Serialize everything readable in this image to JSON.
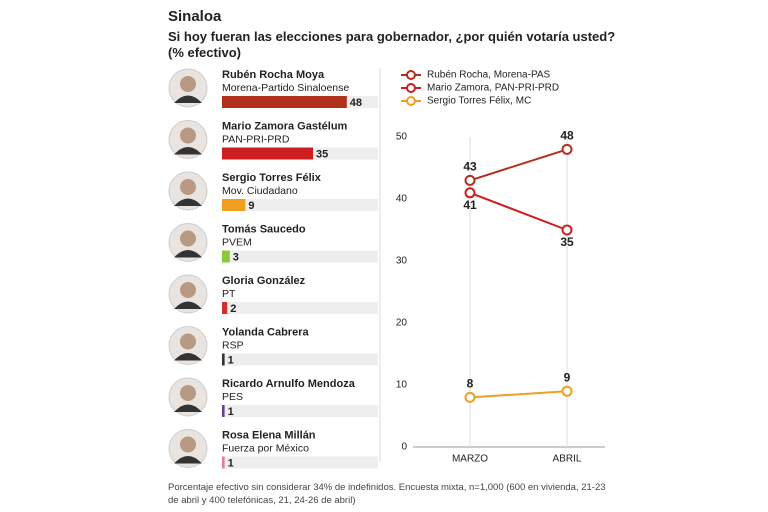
{
  "title": "Sinaloa",
  "subtitle": "Si hoy fueran las elecciones para gobernador, ¿por quién votaría usted? (% efectivo)",
  "note": "Porcentaje efectivo sin considerar 34% de indefinidos. Encuesta mixta, n=1,000 (600 en vivienda, 21-23 de abril y 400 telefónicas, 21, 24-26 de abril)",
  "chart_data": [
    {
      "type": "bar",
      "categories": [
        "Rubén Rocha Moya",
        "Mario Zamora Gastélum",
        "Sergio Torres Félix",
        "Tomás Saucedo",
        "Gloria González",
        "Yolanda Cabrera",
        "Ricardo Arnulfo Mendoza",
        "Rosa Elena Millán"
      ],
      "parties": [
        "Morena-Partido Sinaloense",
        "PAN-PRI-PRD",
        "Mov. Ciudadano",
        "PVEM",
        "PT",
        "RSP",
        "PES",
        "Fuerza por México"
      ],
      "values": [
        48,
        35,
        9,
        3,
        2,
        1,
        1,
        1
      ],
      "colors": [
        "#b0301c",
        "#cc1f1f",
        "#f0a020",
        "#8cc63f",
        "#d32f2f",
        "#333333",
        "#6a3d9a",
        "#e07ab0"
      ],
      "xlim": [
        0,
        60
      ]
    },
    {
      "type": "line",
      "categories": [
        "MARZO",
        "ABRIL"
      ],
      "series": [
        {
          "name": "Rubén Rocha, Morena-PAS",
          "color": "#b0301c",
          "values": [
            43,
            48
          ]
        },
        {
          "name": "Mario Zamora, PAN-PRI-PRD",
          "color": "#cc1f1f",
          "values": [
            41,
            35
          ]
        },
        {
          "name": "Sergio Torres Félix, MC",
          "color": "#f0a020",
          "values": [
            8,
            9
          ]
        }
      ],
      "ylim": [
        0,
        50
      ],
      "yticks": [
        0,
        10,
        20,
        30,
        40,
        50
      ]
    }
  ]
}
